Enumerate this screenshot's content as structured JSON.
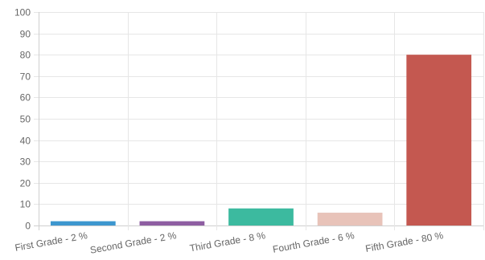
{
  "chart_data": {
    "type": "bar",
    "categories": [
      "First Grade - 2 %",
      "Second Grade - 2 %",
      "Third Grade - 8 %",
      "Fourth Grade - 6 %",
      "Fifth Grade - 80 %"
    ],
    "values": [
      2,
      2,
      8,
      6,
      80
    ],
    "colors": [
      "#3d97cf",
      "#8e5ea2",
      "#3cba9f",
      "#e8c3b9",
      "#c45850"
    ],
    "title": "",
    "xlabel": "",
    "ylabel": "",
    "ylim": [
      0,
      100
    ],
    "yticks": [
      "0",
      "10",
      "20",
      "30",
      "40",
      "50",
      "60",
      "70",
      "80",
      "90",
      "100"
    ],
    "grid": true,
    "legend": "none"
  }
}
